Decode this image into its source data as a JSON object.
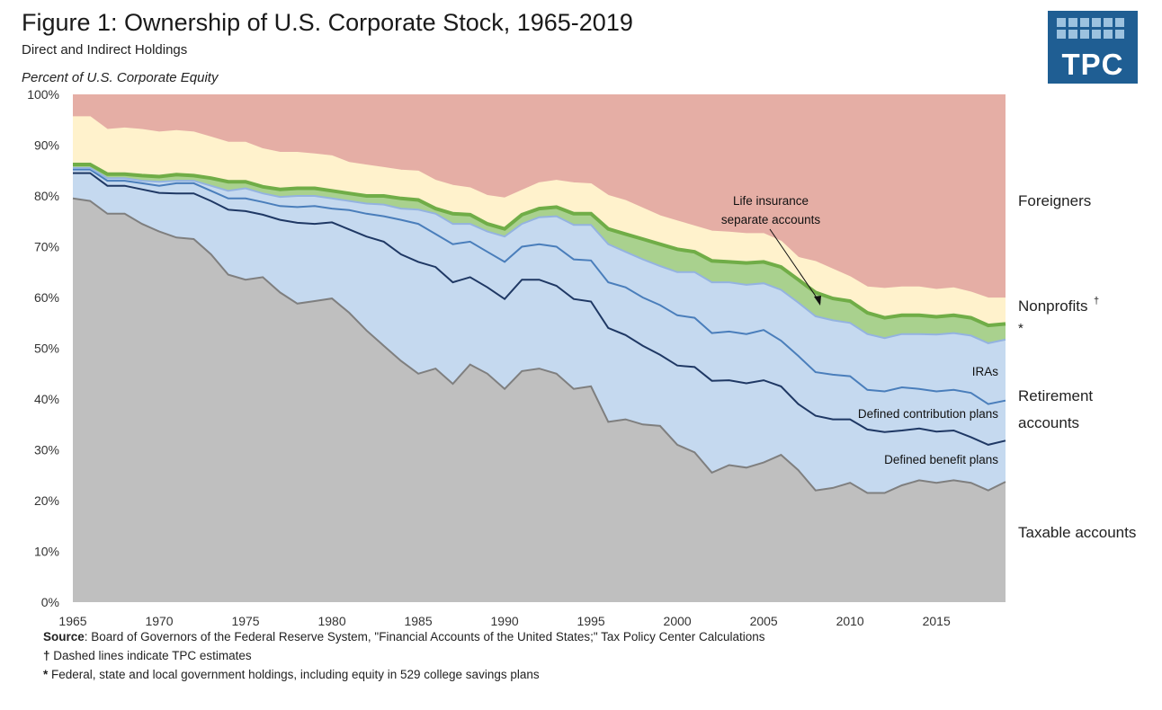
{
  "header": {
    "title": "Figure 1: Ownership of U.S. Corporate Stock, 1965-2019",
    "subtitle": "Direct and Indirect Holdings",
    "ylabel": "Percent of U.S. Corporate Equity",
    "logo_text": "TPC"
  },
  "footer": {
    "source_label": "Source",
    "source_text": ": Board of Governors of the Federal Reserve System, \"Financial Accounts of the United States;\" Tax Policy Center Calculations",
    "note1_mark": "†",
    "note1_text": " Dashed lines indicate TPC estimates",
    "note2_mark": "*",
    "note2_text": " Federal, state and local government holdings, including equity in 529 college savings plans"
  },
  "chart_data": {
    "type": "area",
    "stacked": true,
    "x_ticks": [
      "1965",
      "1970",
      "1975",
      "1980",
      "1985",
      "1990",
      "1995",
      "2000",
      "2005",
      "2010",
      "2015"
    ],
    "y_ticks": [
      "0%",
      "10%",
      "20%",
      "30%",
      "40%",
      "50%",
      "60%",
      "70%",
      "80%",
      "90%",
      "100%"
    ],
    "ylim": [
      0,
      100
    ],
    "xlim": [
      1965,
      2019
    ],
    "x": [
      1965,
      1966,
      1967,
      1968,
      1969,
      1970,
      1971,
      1972,
      1973,
      1974,
      1975,
      1976,
      1977,
      1978,
      1979,
      1980,
      1981,
      1982,
      1983,
      1984,
      1985,
      1986,
      1987,
      1988,
      1989,
      1990,
      1991,
      1992,
      1993,
      1994,
      1995,
      1996,
      1997,
      1998,
      1999,
      2000,
      2001,
      2002,
      2003,
      2004,
      2005,
      2006,
      2007,
      2008,
      2009,
      2010,
      2011,
      2012,
      2013,
      2014,
      2015,
      2016,
      2017,
      2018,
      2019
    ],
    "cumulative_series": [
      {
        "name": "Taxable accounts",
        "color": "#bfbfbf",
        "line": "#7f7f7f",
        "values": [
          79.5,
          79,
          76.5,
          76.5,
          74.5,
          73,
          71.8,
          71.5,
          68.5,
          64.5,
          63.5,
          64,
          61,
          58.8,
          59.3,
          59.8,
          57,
          53.5,
          50.5,
          47.5,
          45,
          46,
          43,
          46.8,
          45,
          42,
          45.5,
          46,
          45,
          42,
          42.5,
          35.5,
          36,
          35,
          34.7,
          31,
          29.5,
          25.5,
          27,
          26.5,
          27.5,
          29,
          26,
          22,
          22.5,
          23.5,
          21.5,
          21.5,
          23,
          24,
          23.5,
          24,
          23.5,
          22,
          23.7
        ]
      },
      {
        "name": "Defined benefit plans",
        "color": "#c5d9ef",
        "line": "#1f3864",
        "values": [
          84.5,
          84.5,
          82,
          82,
          81.3,
          80.6,
          80.5,
          80.5,
          79,
          77.3,
          77,
          76.3,
          75.3,
          74.7,
          74.5,
          74.8,
          73.4,
          72,
          71,
          68.5,
          67,
          66,
          63,
          64,
          62,
          59.7,
          63.5,
          63.5,
          62.3,
          59.7,
          59.2,
          54,
          52.6,
          50.5,
          48.7,
          46.6,
          46.3,
          43.6,
          43.7,
          43.1,
          43.7,
          42.5,
          39,
          36.7,
          36,
          36,
          34,
          33.5,
          33.8,
          34.2,
          33.6,
          33.8,
          32.5,
          31,
          31.8
        ]
      },
      {
        "name": "Defined contribution plans",
        "color": "#c5d9ef",
        "line": "#4a7ebb",
        "values": [
          85.2,
          85.2,
          83,
          83,
          82.5,
          82,
          82.5,
          82.5,
          81,
          79.5,
          79.5,
          78.8,
          78,
          77.8,
          78,
          77.5,
          77.2,
          76.5,
          76,
          75.3,
          74.5,
          72.5,
          70.5,
          71,
          69,
          67,
          70,
          70.5,
          70,
          67.5,
          67.3,
          63,
          62,
          60,
          58.5,
          56.5,
          56,
          53,
          53.3,
          52.8,
          53.6,
          51.5,
          48.5,
          45.3,
          44.8,
          44.5,
          41.8,
          41.5,
          42.3,
          42,
          41.5,
          41.8,
          41.2,
          39,
          39.7
        ]
      },
      {
        "name": "IRAs",
        "color": "#c5d9ef",
        "line": "#94b3e0",
        "values": [
          85.5,
          85.5,
          83.5,
          83.5,
          83,
          82.8,
          83,
          83,
          82,
          81,
          81.5,
          80.5,
          79.8,
          80,
          80,
          79.5,
          79,
          78.5,
          78.3,
          77.5,
          77.3,
          76.5,
          74.5,
          74.5,
          73,
          72,
          74.5,
          75.8,
          76,
          74.3,
          74.3,
          70.5,
          69,
          67.5,
          66.2,
          65,
          65,
          63,
          63,
          62.5,
          62.8,
          61.5,
          59,
          56.3,
          55.5,
          55,
          52.8,
          52,
          52.8,
          52.8,
          52.7,
          53,
          52.5,
          51,
          51.7
        ]
      },
      {
        "name": "Life insurance separate accounts",
        "color": "#a9d18e",
        "line": "#70ad47",
        "values": [
          86.2,
          86.2,
          84.3,
          84.3,
          84,
          83.8,
          84.2,
          84,
          83.5,
          82.8,
          82.8,
          81.8,
          81.3,
          81.5,
          81.5,
          81,
          80.5,
          80,
          80,
          79.5,
          79.2,
          77.5,
          76.5,
          76.3,
          74.5,
          73.5,
          76.3,
          77.5,
          77.8,
          76.5,
          76.5,
          73.5,
          72.5,
          71.5,
          70.5,
          69.5,
          69,
          67.2,
          67,
          66.8,
          67,
          66,
          63.5,
          61,
          59.8,
          59.3,
          57,
          56,
          56.5,
          56.5,
          56.2,
          56.5,
          56,
          54.5,
          54.8
        ]
      },
      {
        "name": "Nonprofits",
        "color": "#fff2cc",
        "line": "#fff2cc",
        "values": [
          95.5,
          95.5,
          93,
          93.3,
          93,
          92.5,
          92.8,
          92.5,
          91.5,
          90.5,
          90.5,
          89.2,
          88.5,
          88.5,
          88.2,
          87.8,
          86.5,
          86,
          85.5,
          85,
          84.8,
          83,
          82,
          81.5,
          80,
          79.5,
          81,
          82.5,
          83,
          82.5,
          82.3,
          80,
          79,
          77.5,
          76,
          75,
          74,
          73,
          72.8,
          72.5,
          72.5,
          71,
          67.8,
          67,
          65.5,
          64,
          62,
          61.7,
          62,
          62,
          61.5,
          61.8,
          61,
          59.8,
          59.8
        ]
      },
      {
        "name": "Foreigners",
        "color": "#e5aea5",
        "line": "#e5aea5",
        "values": [
          100,
          100,
          100,
          100,
          100,
          100,
          100,
          100,
          100,
          100,
          100,
          100,
          100,
          100,
          100,
          100,
          100,
          100,
          100,
          100,
          100,
          100,
          100,
          100,
          100,
          100,
          100,
          100,
          100,
          100,
          100,
          100,
          100,
          100,
          100,
          100,
          100,
          100,
          100,
          100,
          100,
          100,
          100,
          100,
          100,
          100,
          100,
          100,
          100,
          100,
          100,
          100,
          100,
          100,
          100
        ]
      }
    ],
    "right_labels": {
      "foreigners": "Foreigners",
      "nonprofits": "Nonprofits",
      "nonprofits_mark": "†",
      "government_mark": "*",
      "retirement_1": "Retirement",
      "retirement_2": "accounts",
      "taxable": "Taxable accounts"
    },
    "inner_labels": {
      "life_1": "Life insurance",
      "life_2": "separate accounts",
      "iras": "IRAs",
      "dc": "Defined contribution plans",
      "db": "Defined benefit plans"
    },
    "legend": "none",
    "grid": false
  }
}
